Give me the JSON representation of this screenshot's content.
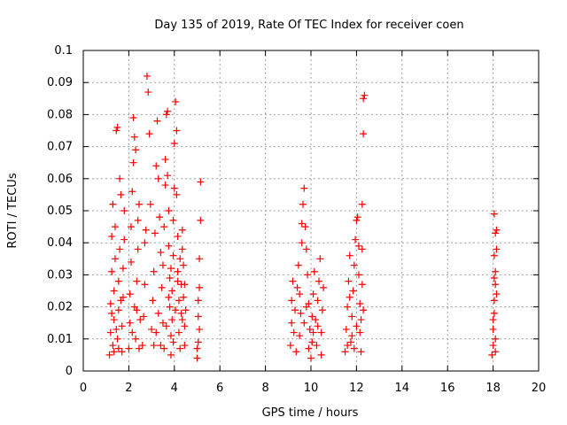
{
  "chart_data": {
    "type": "scatter",
    "title": "Day 135 of 2019, Rate Of TEC Index for receiver coen",
    "xlabel": "GPS time / hours",
    "ylabel": "ROTI / TECUs",
    "xlim": [
      0,
      20
    ],
    "ylim": [
      0,
      0.1
    ],
    "xticks": [
      0,
      2,
      4,
      6,
      8,
      10,
      12,
      14,
      16,
      18,
      20
    ],
    "xtick_labels": [
      "0",
      "2",
      "4",
      "6",
      "8",
      "10",
      "12",
      "14",
      "16",
      "18",
      "20"
    ],
    "yticks": [
      0,
      0.01,
      0.02,
      0.03,
      0.04,
      0.05,
      0.06,
      0.07,
      0.08,
      0.09,
      0.1
    ],
    "ytick_labels": [
      "0",
      "0.01",
      "0.02",
      "0.03",
      "0.04",
      "0.05",
      "0.06",
      "0.07",
      "0.08",
      "0.09",
      "0.1"
    ],
    "grid": true,
    "marker": "+",
    "marker_color": "#ff0000",
    "series": [
      {
        "name": "ROTI",
        "points": [
          [
            1.15,
            0.005
          ],
          [
            1.2,
            0.012
          ],
          [
            1.2,
            0.021
          ],
          [
            1.25,
            0.031
          ],
          [
            1.25,
            0.042
          ],
          [
            1.3,
            0.052
          ],
          [
            1.3,
            0.008
          ],
          [
            1.35,
            0.016
          ],
          [
            1.35,
            0.025
          ],
          [
            1.4,
            0.035
          ],
          [
            1.4,
            0.045
          ],
          [
            1.45,
            0.075
          ],
          [
            1.5,
            0.076
          ],
          [
            1.5,
            0.01
          ],
          [
            1.55,
            0.019
          ],
          [
            1.55,
            0.028
          ],
          [
            1.6,
            0.038
          ],
          [
            1.6,
            0.06
          ],
          [
            1.65,
            0.055
          ],
          [
            1.7,
            0.006
          ],
          [
            1.7,
            0.014
          ],
          [
            1.75,
            0.023
          ],
          [
            1.75,
            0.032
          ],
          [
            1.8,
            0.041
          ],
          [
            1.8,
            0.05
          ],
          [
            1.25,
            0.018
          ],
          [
            1.35,
            0.006
          ],
          [
            1.45,
            0.013
          ],
          [
            1.55,
            0.007
          ],
          [
            1.65,
            0.022
          ],
          [
            2.0,
            0.007
          ],
          [
            2.05,
            0.015
          ],
          [
            2.05,
            0.024
          ],
          [
            2.1,
            0.034
          ],
          [
            2.1,
            0.045
          ],
          [
            2.15,
            0.056
          ],
          [
            2.2,
            0.065
          ],
          [
            2.2,
            0.079
          ],
          [
            2.25,
            0.073
          ],
          [
            2.3,
            0.069
          ],
          [
            2.3,
            0.01
          ],
          [
            2.35,
            0.019
          ],
          [
            2.35,
            0.028
          ],
          [
            2.4,
            0.038
          ],
          [
            2.4,
            0.047
          ],
          [
            2.45,
            0.052
          ],
          [
            2.15,
            0.012
          ],
          [
            2.25,
            0.02
          ],
          [
            2.45,
            0.007
          ],
          [
            2.5,
            0.016
          ],
          [
            2.6,
            0.008
          ],
          [
            2.65,
            0.017
          ],
          [
            2.7,
            0.027
          ],
          [
            2.7,
            0.04
          ],
          [
            2.75,
            0.044
          ],
          [
            2.8,
            0.092
          ],
          [
            2.85,
            0.087
          ],
          [
            2.9,
            0.074
          ],
          [
            2.95,
            0.052
          ],
          [
            3.0,
            0.013
          ],
          [
            3.05,
            0.022
          ],
          [
            3.1,
            0.031
          ],
          [
            3.15,
            0.043
          ],
          [
            3.2,
            0.064
          ],
          [
            3.25,
            0.078
          ],
          [
            3.3,
            0.06
          ],
          [
            3.35,
            0.048
          ],
          [
            3.4,
            0.037
          ],
          [
            3.45,
            0.026
          ],
          [
            3.5,
            0.015
          ],
          [
            3.1,
            0.008
          ],
          [
            3.2,
            0.012
          ],
          [
            3.3,
            0.018
          ],
          [
            3.4,
            0.008
          ],
          [
            3.5,
            0.033
          ],
          [
            3.55,
            0.045
          ],
          [
            3.6,
            0.058
          ],
          [
            3.6,
            0.066
          ],
          [
            3.65,
            0.08
          ],
          [
            3.7,
            0.081
          ],
          [
            3.7,
            0.061
          ],
          [
            3.75,
            0.05
          ],
          [
            3.75,
            0.039
          ],
          [
            3.8,
            0.029
          ],
          [
            3.8,
            0.02
          ],
          [
            3.85,
            0.011
          ],
          [
            3.85,
            0.005
          ],
          [
            3.9,
            0.016
          ],
          [
            3.9,
            0.025
          ],
          [
            3.95,
            0.036
          ],
          [
            3.95,
            0.047
          ],
          [
            4.0,
            0.057
          ],
          [
            4.0,
            0.071
          ],
          [
            4.05,
            0.084
          ],
          [
            4.1,
            0.075
          ],
          [
            4.1,
            0.055
          ],
          [
            4.15,
            0.042
          ],
          [
            4.15,
            0.031
          ],
          [
            4.2,
            0.022
          ],
          [
            4.2,
            0.012
          ],
          [
            4.25,
            0.007
          ],
          [
            4.3,
            0.018
          ],
          [
            4.3,
            0.027
          ],
          [
            4.35,
            0.038
          ],
          [
            4.35,
            0.044
          ],
          [
            4.4,
            0.033
          ],
          [
            4.4,
            0.023
          ],
          [
            4.45,
            0.014
          ],
          [
            4.45,
            0.008
          ],
          [
            4.5,
            0.019
          ],
          [
            3.55,
            0.007
          ],
          [
            3.65,
            0.014
          ],
          [
            3.75,
            0.023
          ],
          [
            3.85,
            0.032
          ],
          [
            3.95,
            0.009
          ],
          [
            4.05,
            0.019
          ],
          [
            4.15,
            0.028
          ],
          [
            4.25,
            0.035
          ],
          [
            4.35,
            0.016
          ],
          [
            4.45,
            0.027
          ],
          [
            5.0,
            0.004
          ],
          [
            5.05,
            0.009
          ],
          [
            5.05,
            0.017
          ],
          [
            5.1,
            0.026
          ],
          [
            5.1,
            0.035
          ],
          [
            5.15,
            0.047
          ],
          [
            5.15,
            0.059
          ],
          [
            5.1,
            0.013
          ],
          [
            5.05,
            0.022
          ],
          [
            5.0,
            0.007
          ],
          [
            9.1,
            0.008
          ],
          [
            9.15,
            0.015
          ],
          [
            9.15,
            0.022
          ],
          [
            9.2,
            0.028
          ],
          [
            9.25,
            0.012
          ],
          [
            9.3,
            0.019
          ],
          [
            9.35,
            0.006
          ],
          [
            9.4,
            0.026
          ],
          [
            9.45,
            0.033
          ],
          [
            9.5,
            0.011
          ],
          [
            9.55,
            0.018
          ],
          [
            9.6,
            0.04
          ],
          [
            9.6,
            0.046
          ],
          [
            9.65,
            0.052
          ],
          [
            9.7,
            0.057
          ],
          [
            9.75,
            0.045
          ],
          [
            9.8,
            0.038
          ],
          [
            9.85,
            0.03
          ],
          [
            9.9,
            0.021
          ],
          [
            9.95,
            0.013
          ],
          [
            10.0,
            0.004
          ],
          [
            10.05,
            0.009
          ],
          [
            10.05,
            0.017
          ],
          [
            10.1,
            0.024
          ],
          [
            10.15,
            0.031
          ],
          [
            10.2,
            0.016
          ],
          [
            10.25,
            0.008
          ],
          [
            10.3,
            0.022
          ],
          [
            10.35,
            0.028
          ],
          [
            10.4,
            0.035
          ],
          [
            10.45,
            0.012
          ],
          [
            10.5,
            0.019
          ],
          [
            10.55,
            0.026
          ],
          [
            9.7,
            0.015
          ],
          [
            9.9,
            0.007
          ],
          [
            10.1,
            0.012
          ],
          [
            10.3,
            0.014
          ],
          [
            9.5,
            0.024
          ],
          [
            9.8,
            0.02
          ],
          [
            10.45,
            0.005
          ],
          [
            11.5,
            0.006
          ],
          [
            11.55,
            0.013
          ],
          [
            11.6,
            0.02
          ],
          [
            11.65,
            0.028
          ],
          [
            11.7,
            0.036
          ],
          [
            11.75,
            0.009
          ],
          [
            11.8,
            0.017
          ],
          [
            11.85,
            0.025
          ],
          [
            11.9,
            0.033
          ],
          [
            11.95,
            0.041
          ],
          [
            12.0,
            0.047
          ],
          [
            12.05,
            0.048
          ],
          [
            12.1,
            0.039
          ],
          [
            12.1,
            0.03
          ],
          [
            12.15,
            0.021
          ],
          [
            12.15,
            0.012
          ],
          [
            12.2,
            0.006
          ],
          [
            12.2,
            0.016
          ],
          [
            12.25,
            0.027
          ],
          [
            12.25,
            0.038
          ],
          [
            12.25,
            0.052
          ],
          [
            12.3,
            0.074
          ],
          [
            12.3,
            0.085
          ],
          [
            12.35,
            0.086
          ],
          [
            12.3,
            0.019
          ],
          [
            11.6,
            0.008
          ],
          [
            11.8,
            0.011
          ],
          [
            12.0,
            0.014
          ],
          [
            11.7,
            0.023
          ],
          [
            11.9,
            0.007
          ],
          [
            17.95,
            0.005
          ],
          [
            18.0,
            0.008
          ],
          [
            18.0,
            0.013
          ],
          [
            18.05,
            0.018
          ],
          [
            18.05,
            0.022
          ],
          [
            18.1,
            0.027
          ],
          [
            18.1,
            0.031
          ],
          [
            18.05,
            0.036
          ],
          [
            18.1,
            0.043
          ],
          [
            18.15,
            0.044
          ],
          [
            18.05,
            0.049
          ],
          [
            18.15,
            0.038
          ],
          [
            18.1,
            0.01
          ],
          [
            18.0,
            0.016
          ],
          [
            18.15,
            0.024
          ],
          [
            18.05,
            0.029
          ],
          [
            18.1,
            0.006
          ]
        ]
      }
    ]
  }
}
